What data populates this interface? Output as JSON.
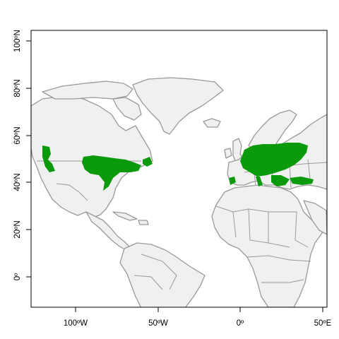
{
  "map": {
    "x_ticks": [
      "100ºW",
      "50ºW",
      "0º",
      "50ºE"
    ],
    "y_ticks": [
      "0º",
      "20ºN",
      "40ºN",
      "60ºN",
      "80ºN",
      "100ºN"
    ],
    "colors": {
      "land": "#f0f0f0",
      "coast": "#999999",
      "range": "#0b9a0b",
      "background": "#ffffff"
    }
  }
}
